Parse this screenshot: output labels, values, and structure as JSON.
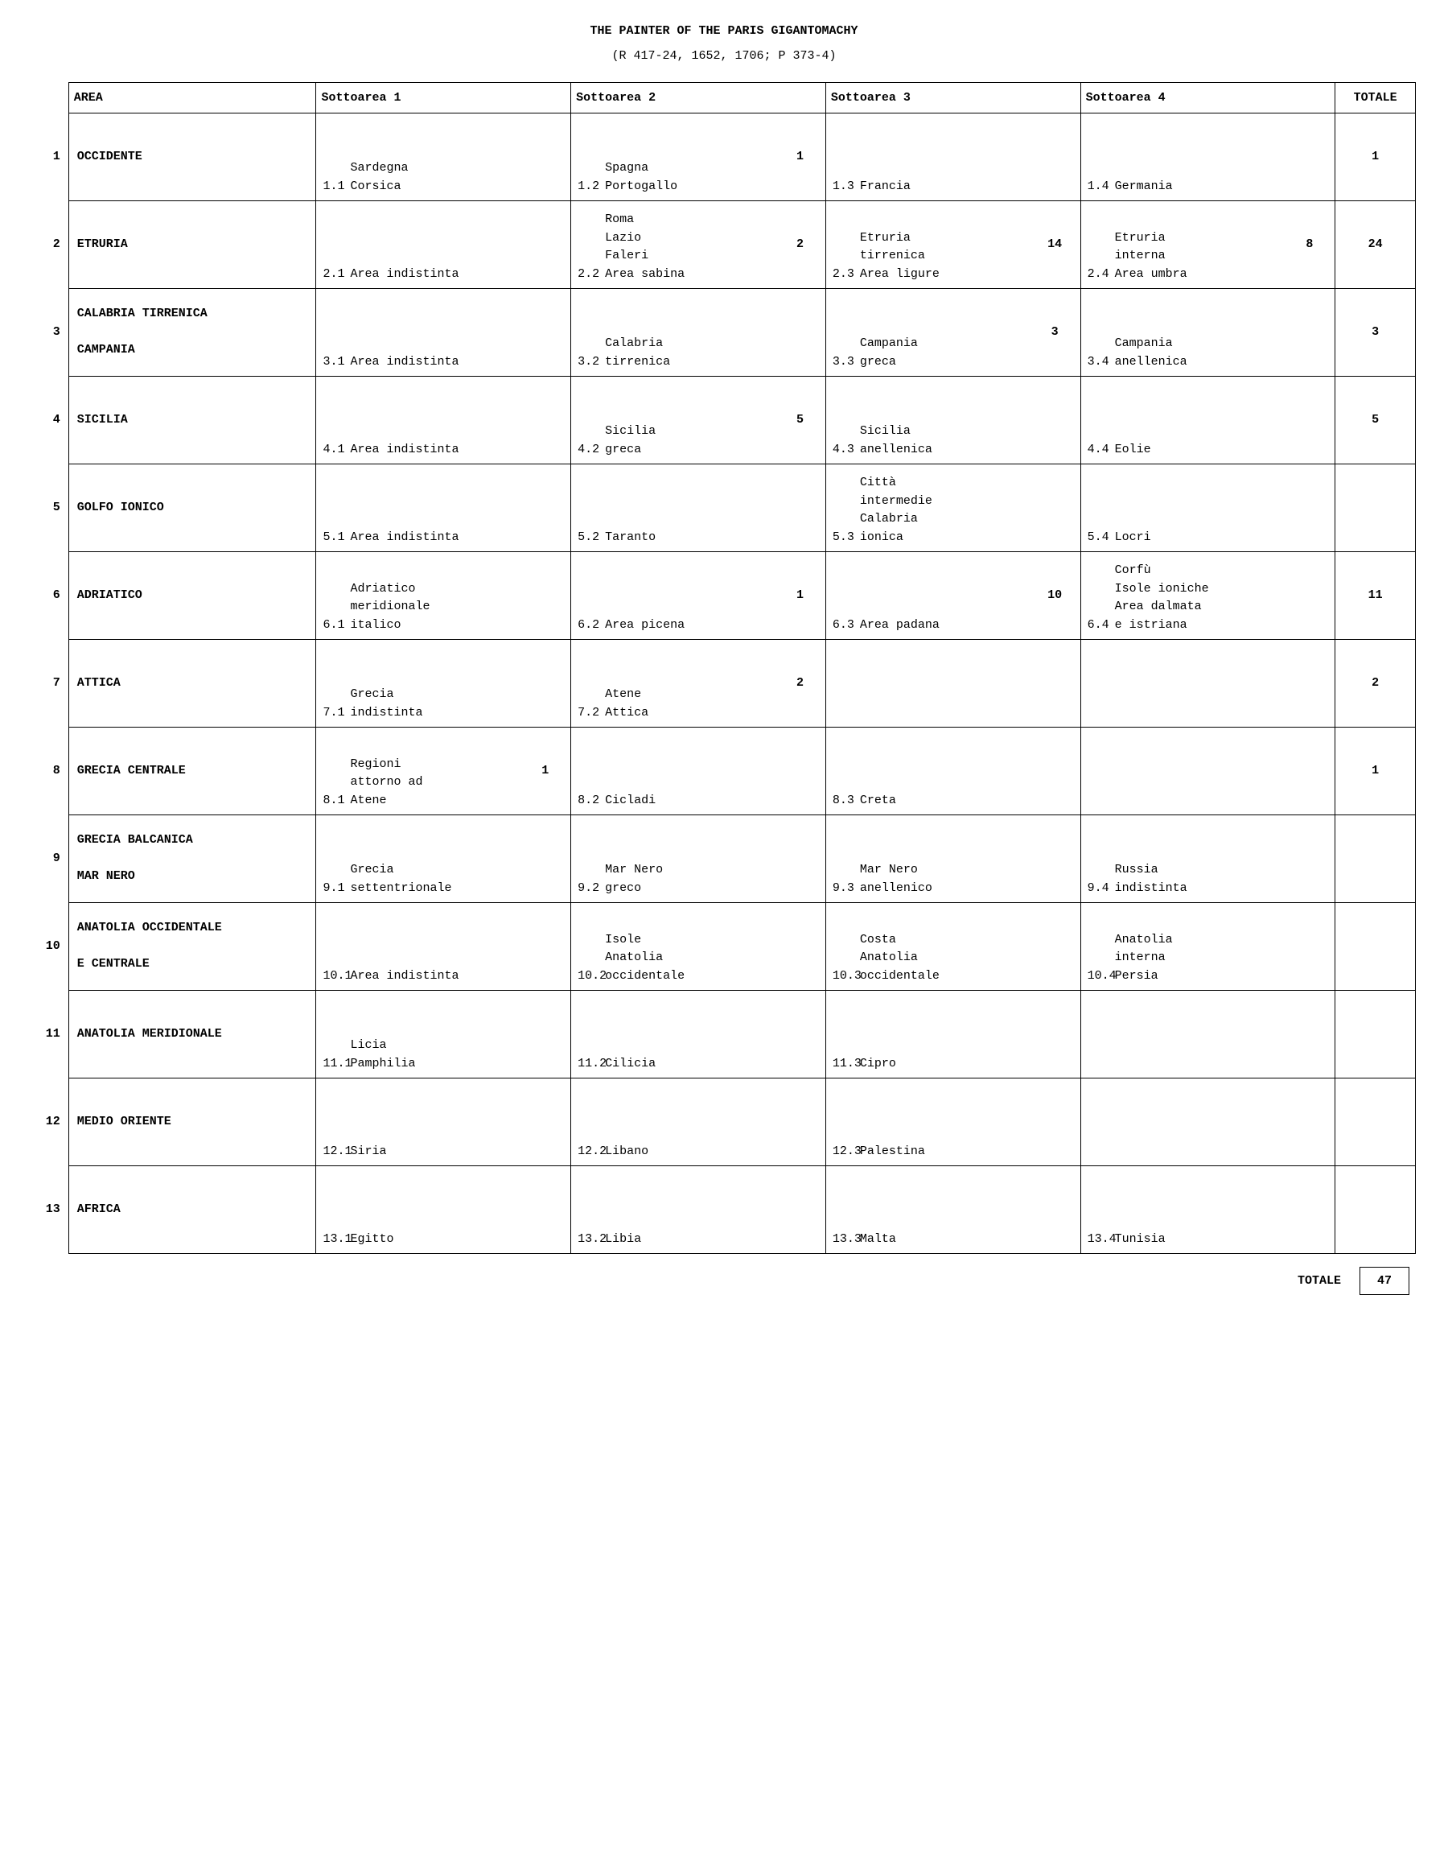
{
  "title": "THE PAINTER OF THE PARIS GIGANTOMACHY",
  "subtitle": "(R 417-24, 1652, 1706; P 373-4)",
  "headers": {
    "area": "AREA",
    "s1": "Sottoarea 1",
    "s2": "Sottoarea 2",
    "s3": "Sottoarea 3",
    "s4": "Sottoarea 4",
    "tot": "TOTALE"
  },
  "rows": [
    {
      "n": "1",
      "area": "OCCIDENTE",
      "s1": {
        "num": "1.1",
        "text": "Sardegna\nCorsica",
        "val": ""
      },
      "s2": {
        "num": "1.2",
        "text": "Spagna\nPortogallo",
        "val": "1"
      },
      "s3": {
        "num": "1.3",
        "text": "Francia",
        "val": ""
      },
      "s4": {
        "num": "1.4",
        "text": "Germania",
        "val": ""
      },
      "tot": "1"
    },
    {
      "n": "2",
      "area": "ETRURIA",
      "s1": {
        "num": "2.1",
        "text": "Area indistinta",
        "val": ""
      },
      "s2": {
        "num": "2.2",
        "text": "Roma\nLazio\nFaleri\nArea sabina",
        "val": "2"
      },
      "s3": {
        "num": "2.3",
        "text": "Etruria\ntirrenica\nArea ligure",
        "val": "14"
      },
      "s4": {
        "num": "2.4",
        "text": "Etruria\ninterna\nArea umbra",
        "val": "8"
      },
      "tot": "24"
    },
    {
      "n": "3",
      "area": "CALABRIA TIRRENICA\n\nCAMPANIA",
      "s1": {
        "num": "3.1",
        "text": "Area indistinta",
        "val": ""
      },
      "s2": {
        "num": "3.2",
        "text": "Calabria\ntirrenica",
        "val": ""
      },
      "s3": {
        "num": "3.3",
        "text": "Campania\ngreca",
        "val": "3"
      },
      "s4": {
        "num": "3.4",
        "text": "Campania\nanellenica",
        "val": ""
      },
      "tot": "3"
    },
    {
      "n": "4",
      "area": "SICILIA",
      "s1": {
        "num": "4.1",
        "text": "Area indistinta",
        "val": ""
      },
      "s2": {
        "num": "4.2",
        "text": "Sicilia\ngreca",
        "val": "5"
      },
      "s3": {
        "num": "4.3",
        "text": "Sicilia\nanellenica",
        "val": ""
      },
      "s4": {
        "num": "4.4",
        "text": "Eolie",
        "val": ""
      },
      "tot": "5"
    },
    {
      "n": "5",
      "area": "GOLFO IONICO",
      "s1": {
        "num": "5.1",
        "text": "Area indistinta",
        "val": ""
      },
      "s2": {
        "num": "5.2",
        "text": "Taranto",
        "val": ""
      },
      "s3": {
        "num": "5.3",
        "text": "Città\nintermedie\nCalabria\nionica",
        "val": ""
      },
      "s4": {
        "num": "5.4",
        "text": "Locri",
        "val": ""
      },
      "tot": ""
    },
    {
      "n": "6",
      "area": "ADRIATICO",
      "s1": {
        "num": "6.1",
        "text": "Adriatico\nmeridionale\nitalico",
        "val": ""
      },
      "s2": {
        "num": "6.2",
        "text": "Area picena",
        "val": "1"
      },
      "s3": {
        "num": "6.3",
        "text": "Area padana",
        "val": "10"
      },
      "s4": {
        "num": "6.4",
        "text": "Corfù\nIsole ioniche\nArea dalmata\ne istriana",
        "val": ""
      },
      "tot": "11"
    },
    {
      "n": "7",
      "area": "ATTICA",
      "s1": {
        "num": "7.1",
        "text": "Grecia\nindistinta",
        "val": ""
      },
      "s2": {
        "num": "7.2",
        "text": "Atene\nAttica",
        "val": "2"
      },
      "s3": {
        "num": "",
        "text": "",
        "val": ""
      },
      "s4": {
        "num": "",
        "text": "",
        "val": ""
      },
      "tot": "2"
    },
    {
      "n": "8",
      "area": "GRECIA CENTRALE",
      "s1": {
        "num": "8.1",
        "text": "Regioni\nattorno ad\nAtene",
        "val": "1"
      },
      "s2": {
        "num": "8.2",
        "text": "Cicladi",
        "val": ""
      },
      "s3": {
        "num": "8.3",
        "text": "Creta",
        "val": ""
      },
      "s4": {
        "num": "",
        "text": "",
        "val": ""
      },
      "tot": "1"
    },
    {
      "n": "9",
      "area": "GRECIA BALCANICA\n\nMAR NERO",
      "s1": {
        "num": "9.1",
        "text": "Grecia\nsettentrionale",
        "val": ""
      },
      "s2": {
        "num": "9.2",
        "text": "Mar Nero\ngreco",
        "val": ""
      },
      "s3": {
        "num": "9.3",
        "text": "Mar Nero\nanellenico",
        "val": ""
      },
      "s4": {
        "num": "9.4",
        "text": "Russia\nindistinta",
        "val": ""
      },
      "tot": ""
    },
    {
      "n": "10",
      "area": "ANATOLIA OCCIDENTALE\n\nE CENTRALE",
      "s1": {
        "num": "10.1",
        "text": "Area indistinta",
        "val": ""
      },
      "s2": {
        "num": "10.2",
        "text": "Isole\nAnatolia\noccidentale",
        "val": ""
      },
      "s3": {
        "num": "10.3",
        "text": "Costa\nAnatolia\noccidentale",
        "val": ""
      },
      "s4": {
        "num": "10.4",
        "text": "Anatolia\ninterna\nPersia",
        "val": ""
      },
      "tot": ""
    },
    {
      "n": "11",
      "area": "ANATOLIA MERIDIONALE",
      "s1": {
        "num": "11.1",
        "text": "Licia\nPamphilia",
        "val": ""
      },
      "s2": {
        "num": "11.2",
        "text": "Cilicia",
        "val": ""
      },
      "s3": {
        "num": "11.3",
        "text": "Cipro",
        "val": ""
      },
      "s4": {
        "num": "",
        "text": "",
        "val": ""
      },
      "tot": ""
    },
    {
      "n": "12",
      "area": "MEDIO ORIENTE",
      "s1": {
        "num": "12.1",
        "text": "Siria",
        "val": ""
      },
      "s2": {
        "num": "12.2",
        "text": "Libano",
        "val": ""
      },
      "s3": {
        "num": "12.3",
        "text": "Palestina",
        "val": ""
      },
      "s4": {
        "num": "",
        "text": "",
        "val": ""
      },
      "tot": ""
    },
    {
      "n": "13",
      "area": "AFRICA",
      "s1": {
        "num": "13.1",
        "text": "Egitto",
        "val": ""
      },
      "s2": {
        "num": "13.2",
        "text": "Libia",
        "val": ""
      },
      "s3": {
        "num": "13.3",
        "text": "Malta",
        "val": ""
      },
      "s4": {
        "num": "13.4",
        "text": "Tunisia",
        "val": ""
      },
      "tot": ""
    }
  ],
  "footer": {
    "label": "TOTALE",
    "value": "47"
  }
}
